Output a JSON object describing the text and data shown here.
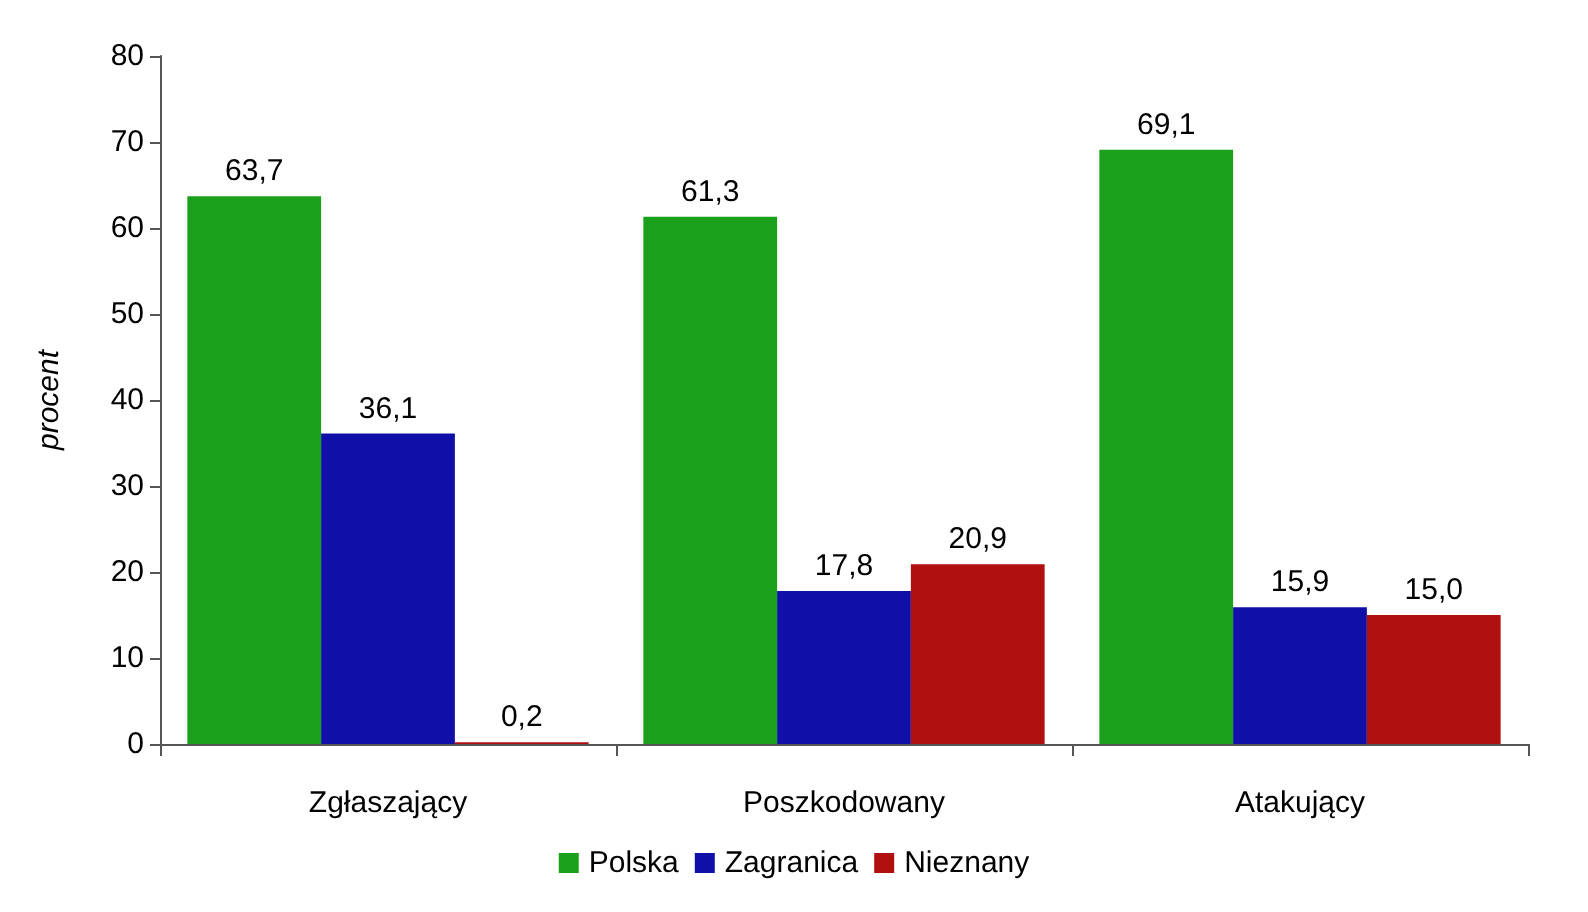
{
  "chart_data": {
    "type": "bar",
    "ylabel": "procent",
    "categories": [
      "Zgłaszający",
      "Poszkodowany",
      "Atakujący"
    ],
    "series": [
      {
        "name": "Polska",
        "color": "#1aa01a",
        "values": [
          63.7,
          61.3,
          69.1
        ],
        "value_labels": [
          "63,7",
          "61,3",
          "69,1"
        ]
      },
      {
        "name": "Zagranica",
        "color": "#1010a8",
        "values": [
          36.1,
          17.8,
          15.9
        ],
        "value_labels": [
          "36,1",
          "17,8",
          "15,9"
        ]
      },
      {
        "name": "Nieznany",
        "color": "#b01010",
        "values": [
          0.2,
          20.9,
          15.0
        ],
        "value_labels": [
          "0,2",
          "20,9",
          "15,0"
        ]
      }
    ],
    "ylim": [
      0,
      80
    ],
    "yticks": [
      0,
      10,
      20,
      30,
      40,
      50,
      60,
      70,
      80
    ],
    "grid": false,
    "legend": "bottom"
  }
}
